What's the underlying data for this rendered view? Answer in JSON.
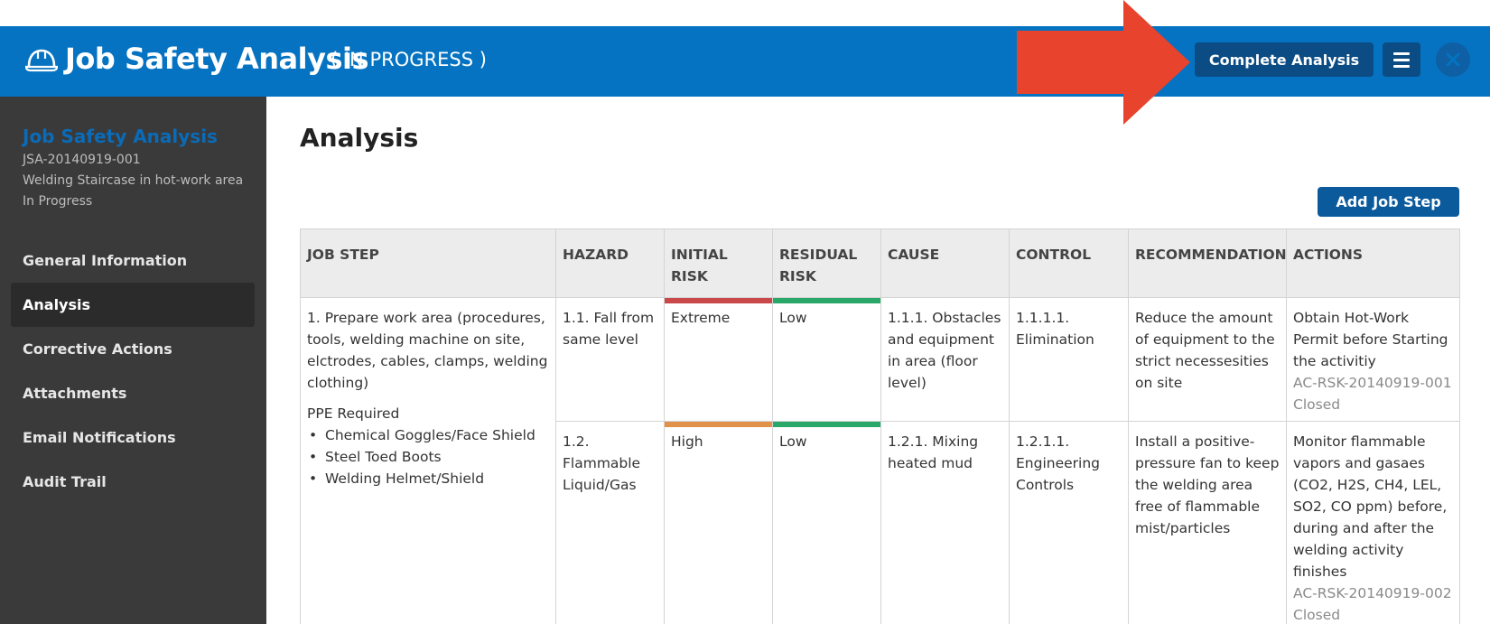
{
  "header": {
    "title": "Job Safety Analysis",
    "status": "( IN PROGRESS )",
    "complete_button": "Complete Analysis",
    "helmet_icon": "hard-hat-icon",
    "menu_icon": "hamburger-menu-icon",
    "close_icon": "close-icon",
    "color": "#0573c1"
  },
  "annotation": {
    "arrow_color": "#e8432d"
  },
  "sidebar": {
    "title": "Job Safety Analysis",
    "id": "JSA-20140919-001",
    "description": "Welding Staircase in hot-work area",
    "status": "In Progress",
    "items": [
      {
        "label": "General Information",
        "active": false
      },
      {
        "label": "Analysis",
        "active": true
      },
      {
        "label": "Corrective Actions",
        "active": false
      },
      {
        "label": "Attachments",
        "active": false
      },
      {
        "label": "Email Notifications",
        "active": false
      },
      {
        "label": "Audit Trail",
        "active": false
      }
    ]
  },
  "main": {
    "title": "Analysis",
    "add_button": "Add Job Step",
    "table": {
      "headers": [
        "JOB STEP",
        "HAZARD",
        "INITIAL RISK",
        "RESIDUAL RISK",
        "CAUSE",
        "CONTROL",
        "RECOMMENDATION",
        "ACTIONS"
      ],
      "job_step": {
        "text": "1. Prepare work area (procedures, tools, welding machine on site, elctrodes, cables, clamps, welding clothing)",
        "ppe_label": "PPE Required",
        "ppe": [
          "Chemical Goggles/Face Shield",
          "Steel Toed Boots",
          "Welding Helmet/Shield"
        ]
      },
      "rows": [
        {
          "hazard": "1.1. Fall from same level",
          "initial_risk": "Extreme",
          "initial_color": "#c9484a",
          "residual_risk": "Low",
          "residual_color": "#2aa86a",
          "cause": "1.1.1. Obstacles and equipment in area (floor level)",
          "control": "1.1.1.1. Elimination",
          "recommendation": "Reduce the amount of equipment to the strict necessesities on site",
          "action_text": "Obtain Hot-Work Permit before Starting the activitiy",
          "action_id": "AC-RSK-20140919-001",
          "action_status": "Closed"
        },
        {
          "hazard": "1.2. Flammable Liquid/Gas",
          "initial_risk": "High",
          "initial_color": "#e0924a",
          "residual_risk": "Low",
          "residual_color": "#2aa86a",
          "cause": "1.2.1. Mixing heated mud",
          "control": "1.2.1.1. Engineering Controls",
          "recommendation": "Install a positive-pressure fan to keep the welding area free of flammable mist/particles",
          "action_text": "Monitor flammable vapors and gasaes (CO2, H2S, CH4, LEL, SO2, CO ppm) before, during and after the welding activity finishes",
          "action_id": "AC-RSK-20140919-002",
          "action_status": "Closed"
        }
      ]
    }
  }
}
